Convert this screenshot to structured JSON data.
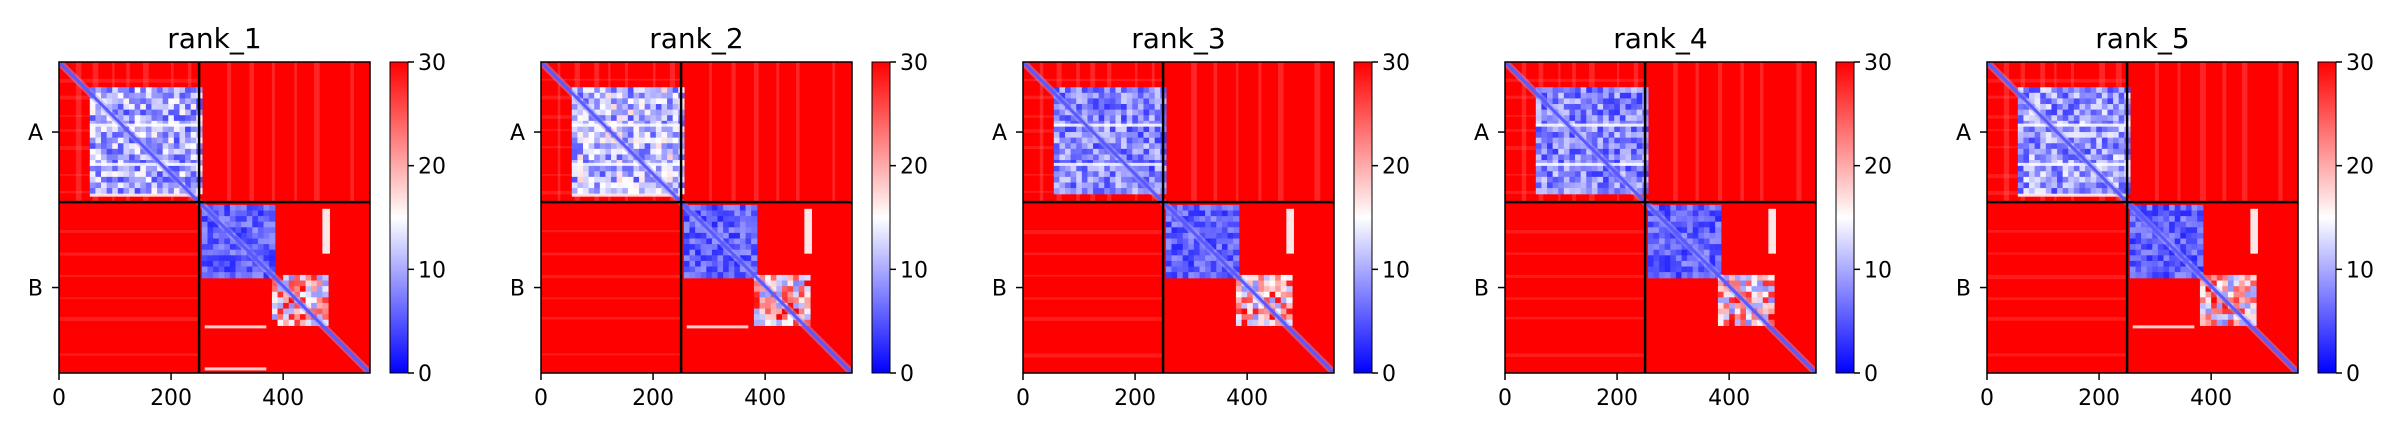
{
  "chart_data": [
    {
      "type": "heatmap",
      "title": "rank_1",
      "xlabel": "",
      "ylabel": "",
      "xlim": [
        0,
        555
      ],
      "ylim": [
        555,
        0
      ],
      "x_ticks": [
        0,
        200,
        400
      ],
      "chains": [
        {
          "label": "A",
          "start": 0,
          "end": 250
        },
        {
          "label": "B",
          "start": 250,
          "end": 555
        }
      ],
      "colorbar": {
        "min": 0,
        "max": 30,
        "ticks": [
          0,
          10,
          20,
          30
        ],
        "colormap": "bwr"
      },
      "blocks": {
        "A": {
          "dense": [
            [
              55,
              250,
              0.55
            ],
            [
              0,
              70,
              0.2
            ]
          ],
          "white_rows": [
            110,
            180,
            235
          ]
        },
        "B": {
          "dense": [
            [
              255,
              380,
              0.75
            ],
            [
              380,
              475,
              0.15
            ]
          ],
          "white_band": [
            [
              470,
              480
            ]
          ],
          "white_rows": [
            470,
            545
          ]
        }
      }
    },
    {
      "type": "heatmap",
      "title": "rank_2",
      "xlabel": "",
      "ylabel": "",
      "xlim": [
        0,
        555
      ],
      "ylim": [
        555,
        0
      ],
      "x_ticks": [
        0,
        200,
        400
      ],
      "chains": [
        {
          "label": "A",
          "start": 0,
          "end": 250
        },
        {
          "label": "B",
          "start": 250,
          "end": 555
        }
      ],
      "colorbar": {
        "min": 0,
        "max": 30,
        "ticks": [
          0,
          10,
          20,
          30
        ],
        "colormap": "bwr"
      },
      "blocks": {
        "A": {
          "dense": [
            [
              55,
              250,
              0.5
            ],
            [
              0,
              70,
              0.2
            ]
          ],
          "white_rows": [
            110,
            180,
            235
          ]
        },
        "B": {
          "dense": [
            [
              255,
              380,
              0.75
            ],
            [
              380,
              475,
              0.15
            ]
          ],
          "white_band": [
            [
              470,
              480
            ]
          ],
          "white_rows": [
            470
          ]
        }
      }
    },
    {
      "type": "heatmap",
      "title": "rank_3",
      "xlabel": "",
      "ylabel": "",
      "xlim": [
        0,
        555
      ],
      "ylim": [
        555,
        0
      ],
      "x_ticks": [
        0,
        200,
        400
      ],
      "chains": [
        {
          "label": "A",
          "start": 0,
          "end": 250
        },
        {
          "label": "B",
          "start": 250,
          "end": 555
        }
      ],
      "colorbar": {
        "min": 0,
        "max": 30,
        "ticks": [
          0,
          10,
          20,
          30
        ],
        "colormap": "bwr"
      },
      "blocks": {
        "A": {
          "dense": [
            [
              55,
              250,
              0.65
            ],
            [
              0,
              70,
              0.2
            ]
          ],
          "white_rows": [
            110,
            180
          ]
        },
        "B": {
          "dense": [
            [
              255,
              380,
              0.75
            ],
            [
              380,
              475,
              0.15
            ]
          ],
          "white_band": [
            [
              470,
              480
            ]
          ],
          "white_rows": []
        }
      }
    },
    {
      "type": "heatmap",
      "title": "rank_4",
      "xlabel": "",
      "ylabel": "",
      "xlim": [
        0,
        555
      ],
      "ylim": [
        555,
        0
      ],
      "x_ticks": [
        0,
        200,
        400
      ],
      "chains": [
        {
          "label": "A",
          "start": 0,
          "end": 250
        },
        {
          "label": "B",
          "start": 250,
          "end": 555
        }
      ],
      "colorbar": {
        "min": 0,
        "max": 30,
        "ticks": [
          0,
          10,
          20,
          30
        ],
        "colormap": "bwr"
      },
      "blocks": {
        "A": {
          "dense": [
            [
              55,
              250,
              0.65
            ],
            [
              0,
              70,
              0.2
            ]
          ],
          "white_rows": [
            110,
            180
          ]
        },
        "B": {
          "dense": [
            [
              255,
              380,
              0.75
            ],
            [
              380,
              475,
              0.15
            ]
          ],
          "white_band": [
            [
              470,
              480
            ]
          ],
          "white_rows": []
        }
      }
    },
    {
      "type": "heatmap",
      "title": "rank_5",
      "xlabel": "",
      "ylabel": "",
      "xlim": [
        0,
        555
      ],
      "ylim": [
        555,
        0
      ],
      "x_ticks": [
        0,
        200,
        400
      ],
      "chains": [
        {
          "label": "A",
          "start": 0,
          "end": 250
        },
        {
          "label": "B",
          "start": 250,
          "end": 555
        }
      ],
      "colorbar": {
        "min": 0,
        "max": 30,
        "ticks": [
          0,
          10,
          20,
          30
        ],
        "colormap": "bwr"
      },
      "blocks": {
        "A": {
          "dense": [
            [
              55,
              250,
              0.6
            ],
            [
              0,
              70,
              0.2
            ]
          ],
          "white_rows": [
            110,
            180,
            235
          ]
        },
        "B": {
          "dense": [
            [
              255,
              380,
              0.75
            ],
            [
              380,
              475,
              0.15
            ]
          ],
          "white_band": [
            [
              470,
              480
            ]
          ],
          "white_rows": [
            470
          ]
        }
      }
    }
  ],
  "colors": {
    "low": "#0000ff",
    "mid": "#ffffff",
    "high": "#ff0000",
    "axis": "#000000"
  }
}
